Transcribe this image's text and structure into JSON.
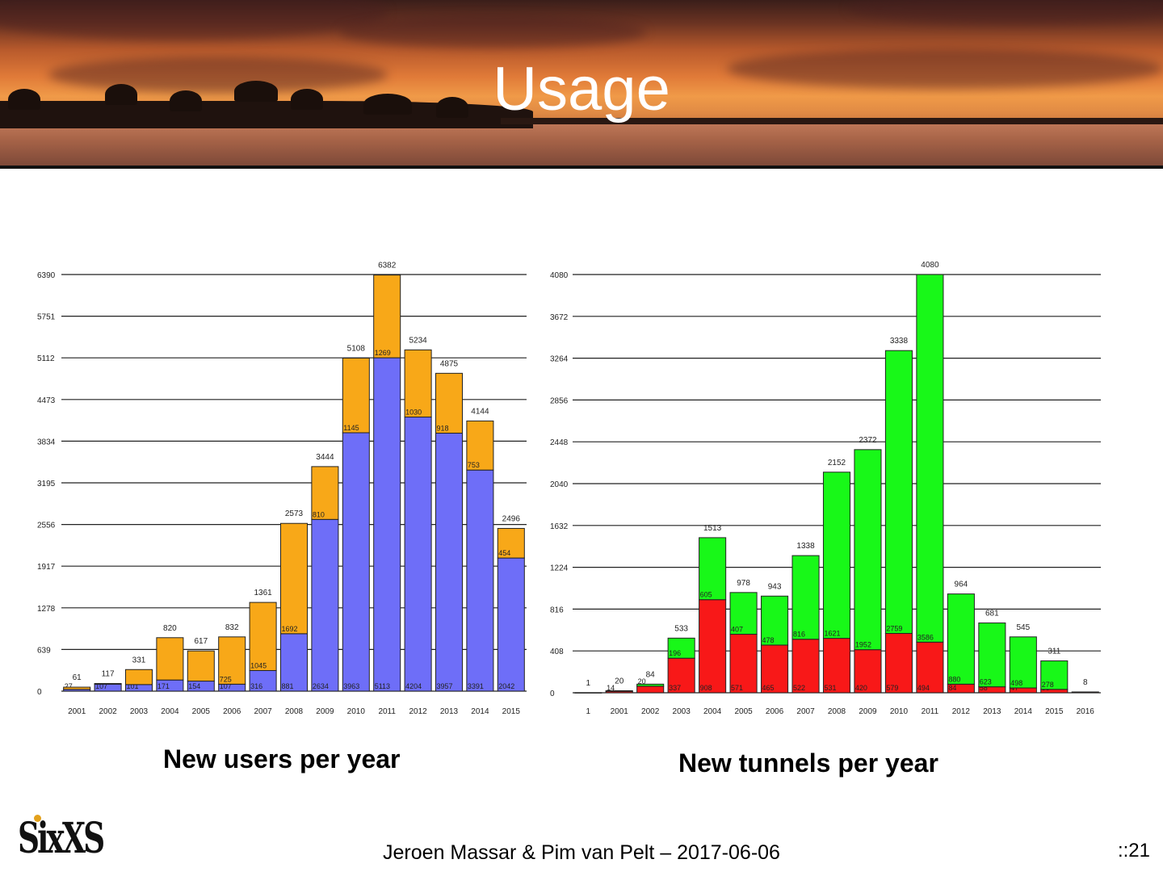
{
  "slide": {
    "title": "Usage",
    "footer": "Jeroen Massar & Pim van Pelt – 2017-06-06",
    "page_number": "::21",
    "logo_text": "SixXS"
  },
  "chart_data": [
    {
      "type": "bar",
      "stacked": true,
      "caption": "New users per year",
      "categories": [
        "2001",
        "2002",
        "2003",
        "2004",
        "2005",
        "2006",
        "2007",
        "2008",
        "2009",
        "2010",
        "2011",
        "2012",
        "2013",
        "2014",
        "2015"
      ],
      "yticks": [
        0,
        639,
        1278,
        1917,
        2556,
        3195,
        3834,
        4473,
        5112,
        5751,
        6390
      ],
      "ylim": [
        0,
        6390
      ],
      "totals": [
        61,
        117,
        331,
        820,
        617,
        832,
        1361,
        2573,
        3444,
        5108,
        6382,
        5234,
        4875,
        4144,
        2496
      ],
      "series": [
        {
          "color": "#6e6ef8",
          "values": [
            27,
            107,
            101,
            171,
            154,
            107,
            316,
            881,
            2634,
            3963,
            5113,
            4204,
            3957,
            3391,
            2042
          ],
          "labels": [
            "27",
            "107",
            "101",
            "171",
            "154",
            "107",
            "316",
            "881",
            "2634",
            "3963",
            "5113",
            "4204",
            "3957",
            "3391",
            "2042"
          ]
        },
        {
          "color": "#f8a818",
          "values": [
            34,
            10,
            230,
            649,
            463,
            725,
            1045,
            1692,
            810,
            1145,
            1269,
            1030,
            918,
            753,
            454
          ],
          "labels": [
            "",
            "",
            "",
            "",
            "",
            "725",
            "1045",
            "1692",
            "810",
            "1145",
            "1269",
            "1030",
            "918",
            "753",
            "454"
          ]
        }
      ],
      "grid": true
    },
    {
      "type": "bar",
      "stacked": true,
      "caption": "New tunnels per year",
      "categories": [
        "1",
        "2001",
        "2002",
        "2003",
        "2004",
        "2005",
        "2006",
        "2007",
        "2008",
        "2009",
        "2010",
        "2011",
        "2012",
        "2013",
        "2014",
        "2015",
        "2016"
      ],
      "yticks": [
        0,
        408,
        816,
        1224,
        1632,
        2040,
        2448,
        2856,
        3264,
        3672,
        4080
      ],
      "ylim": [
        0,
        4080
      ],
      "totals": [
        1,
        20,
        84,
        533,
        1513,
        978,
        943,
        1338,
        2152,
        2372,
        3338,
        4080,
        964,
        681,
        545,
        311,
        8
      ],
      "series": [
        {
          "color": "#f81818",
          "values": [
            1,
            14,
            64,
            337,
            908,
            571,
            465,
            522,
            531,
            420,
            579,
            494,
            84,
            58,
            47,
            33,
            8
          ],
          "labels": [
            "",
            "14",
            "",
            "337",
            "908",
            "571",
            "465",
            "522",
            "531",
            "420",
            "579",
            "494",
            "84",
            "58",
            "47",
            "33",
            ""
          ]
        },
        {
          "color": "#18f818",
          "values": [
            0,
            6,
            20,
            196,
            605,
            407,
            478,
            816,
            1621,
            1952,
            2759,
            3586,
            880,
            623,
            498,
            278,
            0
          ],
          "labels": [
            "",
            "",
            "20",
            "196",
            "605",
            "407",
            "478",
            "816",
            "1621",
            "1952",
            "2759",
            "3586",
            "880",
            "623",
            "498",
            "278",
            ""
          ]
        }
      ],
      "grid": true
    }
  ]
}
